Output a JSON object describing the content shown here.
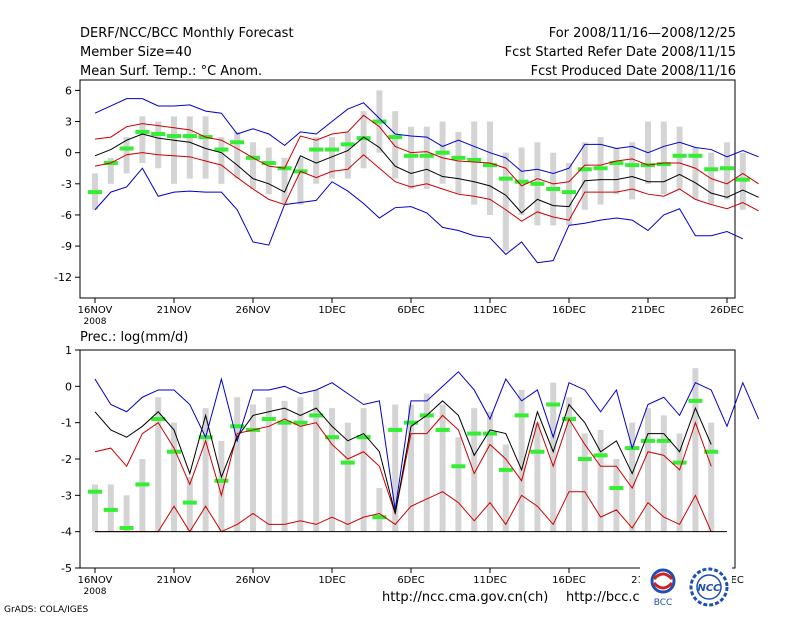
{
  "header": {
    "title": "DERF/NCC/BCC Monthly Forecast",
    "member_size": "Member Size=40",
    "variable": "Mean Surf. Temp.: °C Anom.",
    "period": "For 2008/11/16—2008/12/25",
    "started": "Fcst Started Refer Date 2008/11/15",
    "produced": "Fcst Produced Date 2008/11/16"
  },
  "lower_label": "Prec.: log(mm/d)",
  "footer": {
    "url1": "http://ncc.cma.gov.cn(ch)",
    "url2": "http://bcc.c",
    "grads": "GrADS: COLA/IGES",
    "logo1_text": "BCC",
    "logo2_text": "NCC"
  },
  "colors": {
    "blue": "#0000cc",
    "red": "#cc0000",
    "black": "#000000",
    "green": "#33ee33",
    "bar": "#d4d4d4"
  },
  "chart_data": [
    {
      "type": "box-line",
      "title": "Mean Surf. Temp.: °C Anom.",
      "xlabels": [
        "16NOV",
        "21NOV",
        "26NOV",
        "1DEC",
        "6DEC",
        "11DEC",
        "16DEC",
        "21DEC",
        "26DEC"
      ],
      "x_year_label": "2008",
      "ylim": [
        -14,
        7
      ],
      "yticks": [
        -12,
        -9,
        -6,
        -3,
        0,
        3,
        6
      ],
      "ensemble_mean": [
        -3.8,
        -1.0,
        0.4,
        2.0,
        1.8,
        1.6,
        1.6,
        1.5,
        0.3,
        1.0,
        -0.5,
        -1.0,
        -1.5,
        -1.8,
        0.3,
        0.3,
        0.8,
        1.4,
        3.0,
        1.5,
        -0.3,
        -0.3,
        0.0,
        -0.5,
        -0.7,
        -1.2,
        -2.5,
        -2.8,
        -3.0,
        -3.5,
        -3.8,
        -1.6,
        -1.5,
        -1.0,
        -1.2,
        -1.2,
        -1.1,
        -0.3,
        -0.3,
        -1.6,
        -1.5,
        -2.6
      ],
      "box_top": [
        -2.0,
        -0.5,
        1.5,
        3.5,
        3.0,
        3.5,
        3.5,
        3.5,
        1.5,
        2.0,
        1.0,
        0.5,
        -0.5,
        -0.5,
        1.5,
        1.5,
        2.0,
        4.0,
        6.0,
        4.0,
        2.5,
        2.5,
        3.0,
        2.0,
        3.0,
        3.0,
        0.0,
        0.5,
        1.0,
        0.0,
        -1.0,
        1.0,
        1.5,
        0.5,
        1.0,
        3.0,
        3.0,
        2.5,
        0.5,
        0.0,
        1.0,
        0.0
      ],
      "box_bottom": [
        -5.5,
        -3.0,
        -2.0,
        -1.0,
        -1.5,
        -3.0,
        -2.5,
        -2.5,
        -3.0,
        -2.5,
        -3.5,
        -4.0,
        -5.0,
        -5.0,
        -3.0,
        -2.5,
        -2.5,
        -1.5,
        0.0,
        -2.5,
        -3.5,
        -3.5,
        -3.0,
        -4.0,
        -5.0,
        -6.0,
        -9.5,
        -6.0,
        -7.0,
        -7.0,
        -7.0,
        -5.5,
        -5.0,
        -4.0,
        -4.5,
        -3.0,
        -4.0,
        -3.5,
        -4.5,
        -5.0,
        -4.5,
        -5.5
      ],
      "blue_upper": [
        3.8,
        4.5,
        5.2,
        5.2,
        4.5,
        4.5,
        4.6,
        4.0,
        3.8,
        1.8,
        2.3,
        1.8,
        0.7,
        2.0,
        1.8,
        3.0,
        4.2,
        4.8,
        3.3,
        1.8,
        1.6,
        1.5,
        0.6,
        1.2,
        0.6,
        0.0,
        -0.5,
        -1.8,
        -1.6,
        -2.0,
        -1.5,
        0.8,
        0.8,
        0.4,
        0.6,
        0.0,
        0.6,
        1.0,
        0.5,
        0.3,
        -0.4,
        0.2,
        -0.4
      ],
      "red_upper": [
        1.3,
        1.5,
        2.5,
        2.8,
        2.6,
        2.4,
        2.2,
        1.5,
        1.2,
        0.4,
        -0.5,
        -1.3,
        -1.5,
        1.6,
        1.2,
        1.8,
        2.0,
        3.6,
        2.5,
        0.6,
        0.0,
        0.1,
        -0.5,
        -0.8,
        -0.9,
        -1.0,
        -1.5,
        -3.2,
        -2.5,
        -3.0,
        -2.8,
        -1.2,
        -1.2,
        -0.8,
        -0.6,
        -1.2,
        -1.0,
        -1.0,
        -1.5,
        -2.5,
        -3.0,
        -2.0,
        -3.0
      ],
      "black_mean": [
        -0.3,
        0.3,
        1.2,
        1.8,
        1.4,
        1.2,
        1.0,
        0.4,
        0.0,
        -1.2,
        -2.5,
        -3.0,
        -3.8,
        -0.3,
        -1.0,
        -0.4,
        0.2,
        1.5,
        0.5,
        -1.3,
        -2.0,
        -1.6,
        -2.3,
        -2.5,
        -2.8,
        -3.2,
        -4.1,
        -5.8,
        -4.5,
        -5.1,
        -5.2,
        -2.7,
        -2.6,
        -2.6,
        -2.3,
        -2.8,
        -2.8,
        -2.1,
        -2.9,
        -3.9,
        -4.3,
        -3.6,
        -4.3
      ],
      "red_lower": [
        -1.3,
        -1.0,
        -0.2,
        0.0,
        -0.2,
        -0.3,
        -0.4,
        -0.8,
        -1.2,
        -2.4,
        -3.5,
        -4.5,
        -5.0,
        -1.8,
        -2.4,
        -1.8,
        -1.6,
        -0.2,
        -1.5,
        -2.8,
        -3.3,
        -3.0,
        -3.5,
        -4.0,
        -4.2,
        -4.5,
        -5.5,
        -6.6,
        -5.7,
        -6.2,
        -6.5,
        -3.8,
        -3.8,
        -3.8,
        -3.5,
        -4.0,
        -4.2,
        -3.5,
        -4.5,
        -5.0,
        -5.4,
        -4.8,
        -5.6
      ],
      "blue_lower": [
        -5.5,
        -3.8,
        -3.3,
        -1.5,
        -4.2,
        -3.8,
        -3.7,
        -3.8,
        -3.8,
        -5.5,
        -8.6,
        -8.9,
        -5.0,
        -4.8,
        -4.6,
        -2.8,
        -3.7,
        -4.9,
        -6.3,
        -5.3,
        -5.2,
        -5.8,
        -7.2,
        -7.5,
        -8.0,
        -8.2,
        -9.8,
        -8.6,
        -10.6,
        -10.4,
        -7.0,
        -6.8,
        -6.5,
        -6.3,
        -6.5,
        -7.5,
        -6.0,
        -5.4,
        -8.0,
        -8.0,
        -7.6,
        -8.3
      ]
    },
    {
      "type": "box-line",
      "title": "Prec.: log(mm/d)",
      "xlabels": [
        "16NOV",
        "21NOV",
        "26NOV",
        "1DEC",
        "6DEC",
        "11DEC",
        "16DEC",
        "21DEC",
        "26DEC"
      ],
      "x_year_label": "2008",
      "ylim": [
        -5,
        1
      ],
      "yticks": [
        -5,
        -4,
        -3,
        -2,
        -1,
        0,
        1
      ],
      "ensemble_mean": [
        -2.9,
        -3.4,
        -3.9,
        -2.7,
        -0.9,
        -1.8,
        -3.2,
        -1.4,
        -2.6,
        -1.1,
        -1.2,
        -0.9,
        -1.0,
        -1.0,
        -0.8,
        -1.4,
        -2.1,
        -1.4,
        -3.6,
        -1.2,
        -1.0,
        -0.8,
        -1.2,
        -2.2,
        -1.3,
        -1.3,
        -2.3,
        -0.8,
        -1.8,
        -0.5,
        -0.9,
        -2.0,
        -1.9,
        -2.8,
        -1.7,
        -1.5,
        -1.5,
        -2.1,
        -0.4,
        -1.8
      ],
      "box_top": [
        -2.7,
        -2.7,
        -3.0,
        -2.0,
        -0.3,
        -1.0,
        -2.5,
        -0.6,
        -1.5,
        -0.3,
        -0.5,
        -0.3,
        -0.4,
        -0.3,
        -0.1,
        -0.6,
        -1.0,
        -0.6,
        -2.8,
        -0.5,
        -0.5,
        -0.2,
        -0.5,
        -1.4,
        -0.6,
        -0.7,
        -1.6,
        -0.1,
        -1.0,
        0.1,
        -0.3,
        -1.3,
        -1.2,
        -2.0,
        -1.0,
        -0.6,
        -0.8,
        -1.3,
        0.5,
        -1.0
      ],
      "box_bottom": [
        -4.0,
        -4.0,
        -4.0,
        -4.0,
        -4.0,
        -4.0,
        -4.0,
        -4.0,
        -4.0,
        -4.0,
        -4.0,
        -4.0,
        -4.0,
        -4.0,
        -4.0,
        -4.0,
        -4.0,
        -4.0,
        -4.0,
        -4.0,
        -4.0,
        -4.0,
        -4.0,
        -4.0,
        -4.0,
        -4.0,
        -4.0,
        -4.0,
        -4.0,
        -4.0,
        -4.0,
        -4.0,
        -4.0,
        -4.0,
        -4.0,
        -4.0,
        -4.0,
        -4.0,
        -4.0,
        -4.0
      ],
      "blue_upper": [
        0.2,
        -0.5,
        -0.7,
        -0.3,
        -0.1,
        -0.1,
        -0.5,
        -1.4,
        0.2,
        -1.5,
        -0.1,
        -0.1,
        0.0,
        -0.2,
        -0.1,
        0.1,
        -0.2,
        -0.5,
        -0.4,
        -3.4,
        -0.4,
        -0.4,
        0.0,
        0.4,
        -0.1,
        -0.9,
        0.2,
        -0.4,
        -0.1,
        -1.4,
        0.1,
        -0.1,
        -0.7,
        -0.1,
        -1.7,
        -0.5,
        -0.3,
        -0.8,
        0.1,
        -0.1,
        -1.1,
        0.1,
        -0.9
      ],
      "black_mean": [
        -0.7,
        -1.2,
        -1.4,
        -1.1,
        -0.7,
        -1.2,
        -2.4,
        -0.8,
        -2.5,
        -1.4,
        -0.8,
        -0.7,
        -0.6,
        -0.8,
        -0.6,
        -1.1,
        -1.5,
        -1.3,
        -1.8,
        -3.5,
        -1.1,
        -0.8,
        -0.4,
        -0.8,
        -1.9,
        -1.2,
        -1.3,
        -2.3,
        -0.7,
        -1.8,
        -0.5,
        -1.0,
        -1.8,
        -1.5,
        -2.4,
        -1.3,
        -1.3,
        -1.8,
        -0.6,
        -1.6
      ],
      "red_upper": [
        -1.8,
        -1.7,
        -2.2,
        -1.3,
        -1.0,
        -1.7,
        -2.7,
        -1.5,
        -3.0,
        -1.3,
        -1.2,
        -1.1,
        -0.9,
        -1.1,
        -1.0,
        -1.6,
        -2.0,
        -1.8,
        -2.2,
        -3.5,
        -1.3,
        -1.3,
        -0.8,
        -1.2,
        -2.4,
        -1.6,
        -2.0,
        -2.6,
        -1.0,
        -2.2,
        -0.9,
        -1.6,
        -2.2,
        -2.2,
        -2.8,
        -1.8,
        -1.9,
        -2.3,
        -1.0,
        -2.2
      ],
      "red_lower": [
        -4.0,
        -4.0,
        -4.0,
        -4.0,
        -4.0,
        -3.3,
        -4.0,
        -3.3,
        -4.0,
        -3.8,
        -3.5,
        -3.8,
        -3.8,
        -3.7,
        -3.8,
        -3.6,
        -3.8,
        -3.6,
        -3.5,
        -3.8,
        -3.3,
        -3.1,
        -2.9,
        -3.2,
        -3.7,
        -3.2,
        -3.8,
        -3.0,
        -3.3,
        -3.8,
        -2.9,
        -2.9,
        -3.6,
        -3.4,
        -3.9,
        -3.2,
        -3.6,
        -3.8,
        -3.0,
        -4.0
      ],
      "zero_floor": -4.0
    }
  ]
}
